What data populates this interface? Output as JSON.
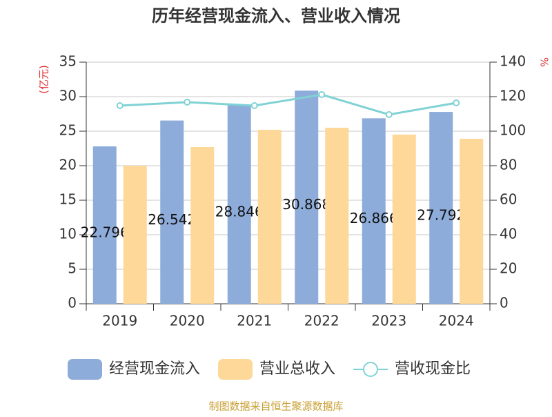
{
  "chart_data": {
    "type": "bar",
    "title": "历年经营现金流入、营业收入情况",
    "y_label": "(亿元)",
    "y2_label": "%",
    "categories": [
      "2019",
      "2020",
      "2021",
      "2022",
      "2023",
      "2024"
    ],
    "series": [
      {
        "name": "经营现金流入",
        "type": "bar",
        "color": "#8eacda",
        "values": [
          22.796,
          26.542,
          28.846,
          30.868,
          26.866,
          27.792
        ],
        "value_labels": [
          "22.796",
          "26.542",
          "28.846",
          "30.868",
          "26.866",
          "27.792"
        ]
      },
      {
        "name": "营业总收入",
        "type": "bar",
        "color": "#fdd899",
        "values": [
          20.0,
          22.7,
          25.2,
          25.5,
          24.5,
          23.9
        ]
      },
      {
        "name": "营收现金比",
        "type": "line",
        "axis": "y2",
        "color": "#80d2d4",
        "values": [
          114.8,
          116.8,
          114.8,
          121.2,
          109.6,
          116.4
        ]
      }
    ],
    "ylim": [
      0,
      35
    ],
    "yticks": [
      0,
      5,
      10,
      15,
      20,
      25,
      30,
      35
    ],
    "y2lim": [
      0,
      140
    ],
    "y2ticks": [
      0,
      20,
      40,
      60,
      80,
      100,
      120,
      140
    ],
    "grid": true,
    "legend": "bottom",
    "source": "制图数据来自恒生聚源数据库"
  }
}
